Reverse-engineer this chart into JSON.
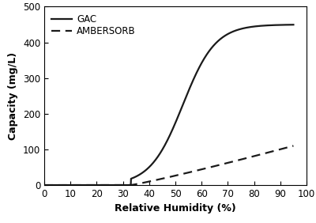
{
  "title": "",
  "xlabel": "Relative Humidity (%)",
  "ylabel": "Capacity (mg/L)",
  "xlim": [
    0,
    100
  ],
  "ylim": [
    0,
    500
  ],
  "xticks": [
    0,
    10,
    20,
    30,
    40,
    50,
    60,
    70,
    80,
    90,
    100
  ],
  "yticks": [
    0,
    100,
    200,
    300,
    400,
    500
  ],
  "gac_label": "GAC",
  "ambersorb_label": "AMBERSORB",
  "line_color": "#1a1a1a",
  "figsize": [
    4.0,
    2.82
  ],
  "dpi": 100
}
